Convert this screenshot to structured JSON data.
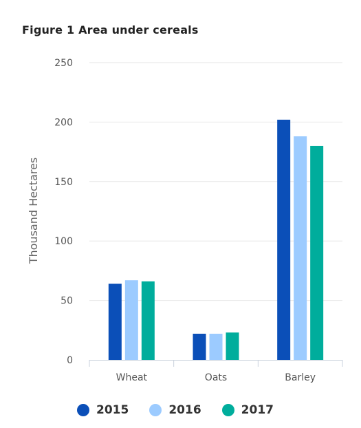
{
  "chart_data": {
    "type": "bar",
    "title": "Figure 1 Area under cereals",
    "xlabel": "",
    "ylabel": "Thousand Hectares",
    "categories": [
      "Wheat",
      "Oats",
      "Barley"
    ],
    "series": [
      {
        "name": "2015",
        "color": "#0b4fb8",
        "values": [
          64,
          22,
          202
        ]
      },
      {
        "name": "2016",
        "color": "#9ccbff",
        "values": [
          67,
          22,
          188
        ]
      },
      {
        "name": "2017",
        "color": "#00ad9c",
        "values": [
          66,
          23,
          180
        ]
      }
    ],
    "ylim": [
      0,
      250
    ],
    "yticks": [
      "0",
      "50",
      "100",
      "150",
      "200",
      "250"
    ],
    "grid": true,
    "legend_position": "bottom"
  }
}
